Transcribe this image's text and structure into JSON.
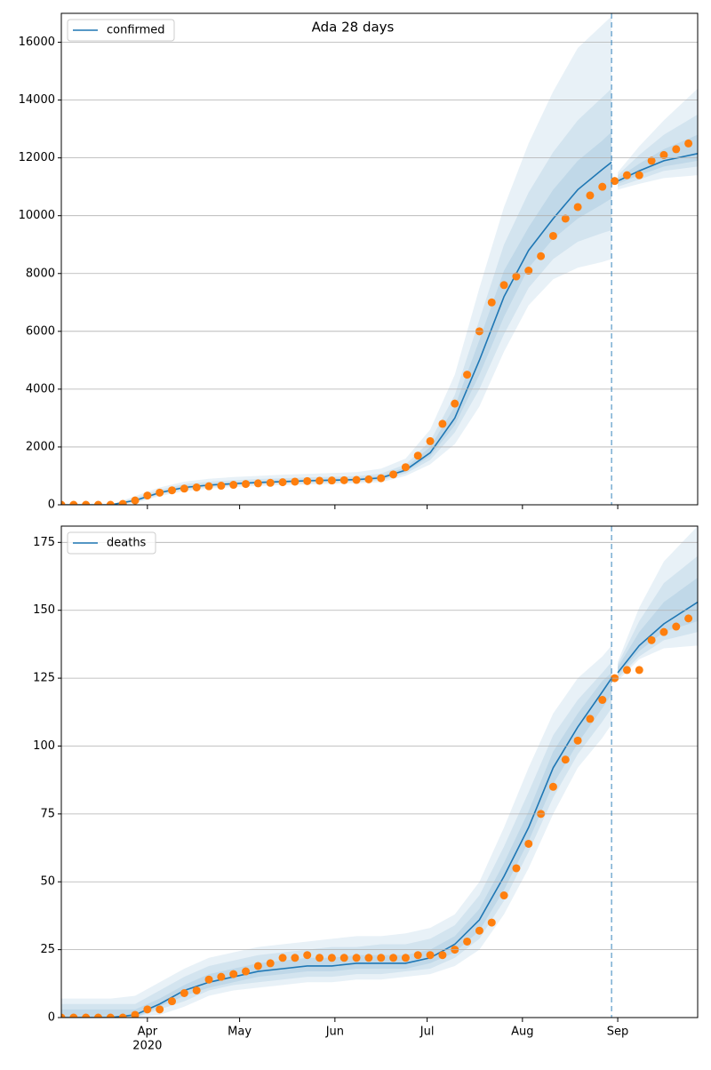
{
  "chart_data": [
    {
      "type": "line",
      "title": "Ada 28 days",
      "xlim": [
        0,
        207
      ],
      "xticks": [
        28,
        58,
        89,
        119,
        150,
        181
      ],
      "ylim": [
        0,
        17000
      ],
      "yticks": [
        0,
        2000,
        4000,
        6000,
        8000,
        10000,
        12000,
        14000,
        16000
      ],
      "grid": "y",
      "legend": "upper left",
      "vline": 179,
      "series": [
        {
          "name": "confirmed",
          "color": "#1f77b4",
          "x": [
            0,
            8,
            16,
            24,
            32,
            40,
            48,
            56,
            64,
            72,
            80,
            88,
            96,
            104,
            112,
            120,
            128,
            136,
            144,
            152,
            160,
            168,
            176,
            179,
            180,
            181,
            188,
            196,
            207
          ],
          "values": [
            0,
            0,
            0,
            150,
            420,
            600,
            680,
            730,
            770,
            800,
            830,
            850,
            870,
            930,
            1200,
            1800,
            3000,
            5000,
            7200,
            8800,
            9900,
            10900,
            11600,
            11850,
            null,
            11200,
            11550,
            11900,
            12150
          ],
          "bands": [
            {
              "lower": [
                0,
                0,
                0,
                60,
                300,
                470,
                560,
                610,
                650,
                680,
                700,
                720,
                740,
                780,
                1000,
                1400,
                2100,
                3400,
                5300,
                6900,
                7800,
                8200,
                8400,
                8500,
                null,
                10900,
                11100,
                11300,
                11400
              ],
              "upper": [
                0,
                0,
                0,
                300,
                600,
                800,
                900,
                960,
                1000,
                1040,
                1070,
                1100,
                1130,
                1250,
                1600,
                2600,
                4500,
                7500,
                10300,
                12500,
                14300,
                15800,
                16600,
                16900,
                null,
                11500,
                12400,
                13300,
                14400
              ]
            },
            {
              "lower": [
                0,
                0,
                0,
                90,
                350,
                520,
                610,
                660,
                700,
                730,
                750,
                770,
                790,
                840,
                1080,
                1550,
                2500,
                4000,
                5900,
                7500,
                8500,
                9100,
                9400,
                9500,
                null,
                11000,
                11250,
                11550,
                11700
              ],
              "upper": [
                0,
                0,
                0,
                240,
                520,
                720,
                800,
                850,
                890,
                920,
                950,
                970,
                990,
                1080,
                1400,
                2200,
                3800,
                6400,
                9000,
                10800,
                12200,
                13300,
                14100,
                14400,
                null,
                11400,
                12100,
                12800,
                13500
              ]
            },
            {
              "lower": [
                0,
                0,
                0,
                120,
                390,
                560,
                650,
                700,
                740,
                770,
                790,
                810,
                830,
                880,
                1140,
                1680,
                2750,
                4500,
                6500,
                8200,
                9200,
                9900,
                10400,
                10600,
                null,
                11100,
                11400,
                11700,
                11900
              ],
              "upper": [
                0,
                0,
                0,
                190,
                460,
                650,
                730,
                780,
                820,
                850,
                880,
                900,
                920,
                1000,
                1300,
                2000,
                3400,
                5700,
                8100,
                9600,
                10900,
                11900,
                12600,
                12900,
                null,
                11300,
                11800,
                12300,
                12800
              ]
            }
          ]
        }
      ],
      "observed": {
        "color": "#ff7f0e",
        "x": [
          0,
          4,
          8,
          12,
          16,
          20,
          24,
          28,
          32,
          36,
          40,
          44,
          48,
          52,
          56,
          60,
          64,
          68,
          72,
          76,
          80,
          84,
          88,
          92,
          96,
          100,
          104,
          108,
          112,
          116,
          120,
          124,
          128,
          132,
          136,
          140,
          144,
          148,
          152,
          156,
          160,
          164,
          168,
          172,
          176,
          180,
          184,
          188,
          192,
          196,
          200,
          204
        ],
        "values": [
          0,
          0,
          0,
          0,
          0,
          30,
          150,
          320,
          420,
          500,
          560,
          600,
          640,
          660,
          690,
          720,
          740,
          760,
          780,
          800,
          820,
          830,
          840,
          850,
          860,
          880,
          920,
          1050,
          1300,
          1700,
          2200,
          2800,
          3500,
          4500,
          6000,
          7000,
          7600,
          7900,
          8100,
          8600,
          9300,
          9900,
          10300,
          10700,
          11000,
          11200,
          11400,
          11400,
          11900,
          12100,
          12300,
          12500
        ]
      }
    },
    {
      "type": "line",
      "xlim": [
        0,
        207
      ],
      "xticks": [
        {
          "value": 28,
          "label": "Apr"
        },
        {
          "value": 58,
          "label": "May"
        },
        {
          "value": 89,
          "label": "Jun"
        },
        {
          "value": 119,
          "label": "Jul"
        },
        {
          "value": 150,
          "label": "Aug"
        },
        {
          "value": 181,
          "label": "Sep"
        }
      ],
      "year_label": "2020",
      "ylim": [
        0,
        181
      ],
      "yticks": [
        0,
        25,
        50,
        75,
        100,
        125,
        150,
        175
      ],
      "grid": "y",
      "legend": "upper left",
      "vline": 179,
      "series": [
        {
          "name": "deaths",
          "color": "#1f77b4",
          "x": [
            0,
            8,
            16,
            24,
            32,
            40,
            48,
            56,
            64,
            72,
            80,
            88,
            96,
            104,
            112,
            120,
            128,
            136,
            144,
            152,
            160,
            168,
            176,
            179,
            180,
            181,
            188,
            196,
            207
          ],
          "values": [
            0,
            0,
            0,
            1,
            5,
            10,
            13,
            15,
            17,
            18,
            19,
            19,
            20,
            20,
            20,
            22,
            27,
            36,
            52,
            70,
            92,
            107,
            120,
            125,
            null,
            127,
            137,
            145,
            153
          ],
          "bands": [
            {
              "lower": [
                0,
                0,
                0,
                0,
                1,
                4,
                8,
                10,
                11,
                12,
                13,
                13,
                14,
                14,
                15,
                16,
                19,
                25,
                38,
                55,
                75,
                92,
                103,
                108,
                null,
                124,
                132,
                136,
                137
              ],
              "upper": [
                7,
                7,
                7,
                8,
                13,
                18,
                22,
                24,
                26,
                27,
                28,
                29,
                30,
                30,
                31,
                33,
                38,
                50,
                70,
                92,
                112,
                125,
                133,
                137,
                null,
                131,
                151,
                168,
                181
              ]
            },
            {
              "lower": [
                0,
                0,
                0,
                0,
                3,
                6,
                10,
                12,
                13,
                14,
                15,
                15,
                16,
                16,
                17,
                18,
                22,
                29,
                43,
                61,
                81,
                97,
                109,
                114,
                null,
                125,
                133,
                139,
                142
              ],
              "upper": [
                5,
                5,
                5,
                5,
                10,
                15,
                19,
                21,
                23,
                24,
                25,
                26,
                26,
                27,
                27,
                29,
                34,
                45,
                63,
                83,
                104,
                117,
                127,
                131,
                null,
                130,
                146,
                160,
                170
              ]
            },
            {
              "lower": [
                0,
                0,
                0,
                0,
                4,
                8,
                11,
                13,
                15,
                16,
                17,
                17,
                18,
                18,
                18,
                20,
                24,
                32,
                47,
                65,
                86,
                101,
                114,
                119,
                null,
                126,
                135,
                142,
                146
              ],
              "upper": [
                3,
                3,
                3,
                3,
                7,
                12,
                16,
                18,
                20,
                21,
                22,
                22,
                23,
                23,
                23,
                25,
                30,
                40,
                57,
                76,
                98,
                112,
                124,
                127,
                null,
                129,
                142,
                153,
                162
              ]
            }
          ]
        }
      ],
      "observed": {
        "color": "#ff7f0e",
        "x": [
          0,
          4,
          8,
          12,
          16,
          20,
          24,
          28,
          32,
          36,
          40,
          44,
          48,
          52,
          56,
          60,
          64,
          68,
          72,
          76,
          80,
          84,
          88,
          92,
          96,
          100,
          104,
          108,
          112,
          116,
          120,
          124,
          128,
          132,
          136,
          140,
          144,
          148,
          152,
          156,
          160,
          164,
          168,
          172,
          176,
          180,
          184,
          188,
          192,
          196,
          200,
          204
        ],
        "values": [
          0,
          0,
          0,
          0,
          0,
          0,
          1,
          3,
          3,
          6,
          9,
          10,
          14,
          15,
          16,
          17,
          19,
          20,
          22,
          22,
          23,
          22,
          22,
          22,
          22,
          22,
          22,
          22,
          22,
          23,
          23,
          23,
          25,
          28,
          32,
          35,
          45,
          55,
          64,
          75,
          85,
          95,
          102,
          110,
          117,
          125,
          128,
          128,
          139,
          142,
          144,
          147
        ]
      }
    }
  ]
}
